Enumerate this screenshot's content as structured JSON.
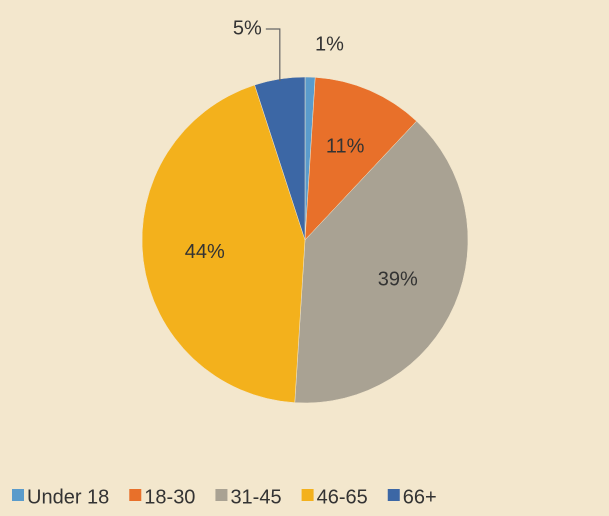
{
  "chart_data": {
    "type": "pie",
    "categories": [
      "Under 18",
      "18-30",
      "31-45",
      "46-65",
      "66+"
    ],
    "values": [
      1,
      11,
      39,
      44,
      5
    ],
    "value_labels": [
      "1%",
      "11%",
      "39%",
      "44%",
      "5%"
    ],
    "colors": [
      "#5a9bcb",
      "#e8702a",
      "#a9a293",
      "#f3b11c",
      "#3c67a5"
    ],
    "legend": "bottom"
  }
}
